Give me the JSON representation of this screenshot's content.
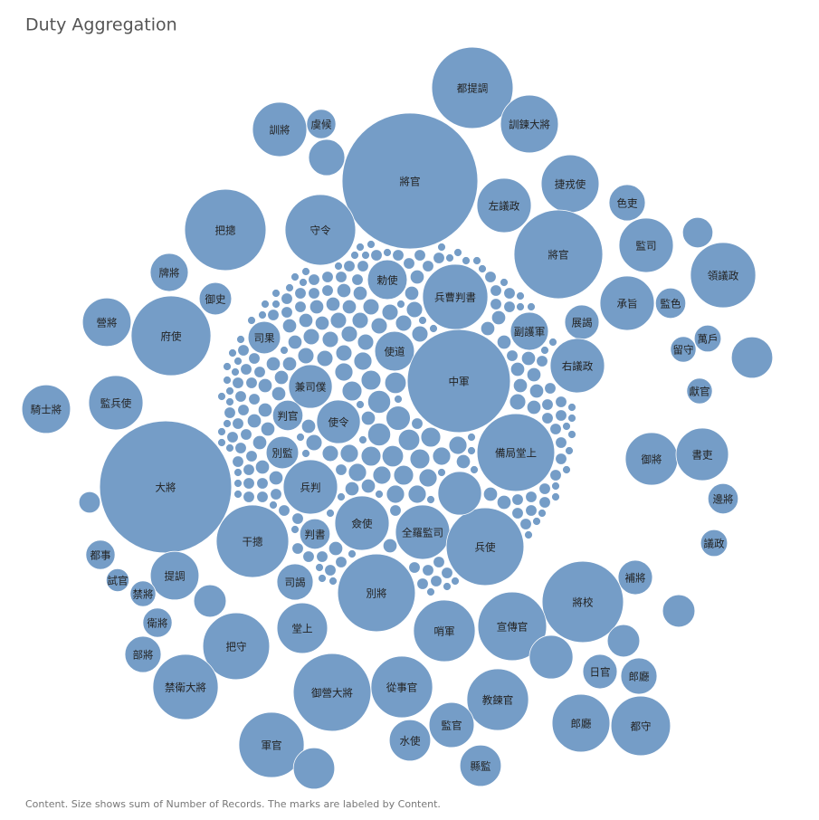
{
  "chart_data": {
    "type": "bubble",
    "title": "Duty Aggregation",
    "caption": "Content.  Size shows sum of Number of Records.  The marks are labeled by Content.",
    "color": "#759dc7",
    "categories": [
      "都提調",
      "訓鍊大將",
      "訓將",
      "虞候",
      "將官",
      "捷戎使",
      "左議政",
      "色吏",
      "把摠",
      "守令",
      "將官",
      "監司",
      "領議政",
      "勅使",
      "兵曹判書",
      "牌將",
      "御史",
      "承旨",
      "監色",
      "營將",
      "府使",
      "司果",
      "副護軍",
      "展謁",
      "萬戶",
      "留守",
      "使道",
      "中軍",
      "右議政",
      "兼司僕",
      "獻官",
      "騎士將",
      "監兵使",
      "判官",
      "使令",
      "備局堂上",
      "御將",
      "書吏",
      "別監",
      "大將",
      "兵判",
      "邊將",
      "僉使",
      "全羅監司",
      "判書",
      "干摠",
      "兵使",
      "議政",
      "都事",
      "試官",
      "提調",
      "司謁",
      "補將",
      "禁將",
      "別將",
      "將校",
      "衛將",
      "堂上",
      "哨軍",
      "宣傳官",
      "把守",
      "部將",
      "日官",
      "郎廳",
      "禁衛大將",
      "御營大將",
      "從事官",
      "教鍊官",
      "郎廳",
      "都守",
      "監官",
      "水使",
      "軍官",
      "縣監",
      null,
      null,
      null,
      null,
      null,
      null,
      null,
      null,
      null,
      null,
      null,
      null,
      null,
      null,
      null,
      null,
      null,
      null,
      null,
      null,
      null,
      null,
      null,
      null,
      null,
      null,
      null,
      null,
      null,
      null,
      null,
      null,
      null,
      null,
      null,
      null,
      null,
      null,
      null,
      null,
      null,
      null,
      null,
      null,
      null,
      null,
      null,
      null,
      null,
      null,
      null,
      null,
      null,
      null,
      null,
      null,
      null,
      null,
      null,
      null,
      null,
      null,
      null,
      null,
      null,
      null,
      null,
      null,
      null,
      null,
      null,
      null,
      null,
      null,
      null,
      null,
      null,
      null,
      null,
      null,
      null,
      null,
      null,
      null,
      null,
      null,
      null,
      null,
      null,
      null,
      null,
      null,
      null,
      null,
      null,
      null,
      null,
      null,
      null,
      null,
      null,
      null,
      null,
      null,
      null,
      null,
      null,
      null,
      null,
      null,
      null,
      null,
      null,
      null,
      null,
      null,
      null,
      null,
      null,
      null,
      null,
      null,
      null,
      null,
      null,
      null,
      null,
      null,
      null,
      null,
      null,
      null,
      null,
      null,
      null,
      null,
      null,
      null,
      null,
      null,
      null,
      null,
      null,
      null,
      null,
      null,
      null,
      null,
      null,
      null,
      null,
      null,
      null,
      null,
      null,
      null,
      null,
      null,
      null,
      null,
      null,
      null,
      null,
      null,
      null,
      null,
      null,
      null,
      null,
      null,
      null,
      null,
      null,
      null,
      null,
      null,
      null,
      null,
      null,
      null,
      null,
      null,
      null,
      null,
      null,
      null,
      null,
      null,
      null,
      null,
      null,
      null,
      null,
      null,
      null,
      null,
      null,
      null,
      null,
      null,
      null,
      null,
      null,
      null,
      null,
      null,
      null,
      null,
      null,
      null,
      null,
      null,
      null,
      null,
      null,
      null,
      null,
      null,
      null,
      null,
      null,
      null,
      null,
      null,
      null,
      null,
      null,
      null,
      null,
      null,
      null,
      null,
      null,
      null,
      null,
      null,
      null,
      null,
      null,
      null,
      null,
      null,
      null,
      null,
      null,
      null,
      null,
      null,
      null,
      null
    ],
    "values": [
      101,
      51,
      45,
      13,
      281,
      51,
      45,
      20,
      101,
      76,
      120,
      45,
      65,
      24,
      65,
      22,
      16,
      45,
      14,
      36,
      97,
      16,
      22,
      18,
      11,
      10,
      24,
      162,
      45,
      29,
      10,
      36,
      45,
      14,
      29,
      92,
      42,
      42,
      16,
      266,
      45,
      14,
      45,
      45,
      14,
      80,
      92,
      11,
      13,
      8,
      36,
      20,
      18,
      10,
      92,
      101,
      13,
      39,
      58,
      72,
      68,
      20,
      18,
      20,
      65,
      92,
      58,
      58,
      51,
      54,
      31,
      26,
      65,
      26,
      26,
      26,
      14,
      20,
      16,
      16,
      29,
      16,
      7,
      29,
      9,
      8,
      8,
      7,
      7,
      7,
      6,
      6,
      6,
      6,
      6,
      6,
      5,
      5,
      5,
      5,
      5,
      5,
      5,
      5,
      5,
      5,
      4,
      4,
      4,
      4,
      4,
      4,
      4,
      4,
      4,
      4,
      4,
      4,
      4,
      4,
      4,
      4,
      4,
      4,
      3,
      3,
      3,
      3,
      3,
      3,
      3,
      3,
      3,
      3,
      3,
      3,
      3,
      3,
      3,
      3,
      3,
      3,
      3,
      3,
      3,
      3,
      3,
      3,
      3,
      3,
      3,
      3,
      3,
      3,
      3,
      3,
      3,
      3,
      3,
      3,
      3,
      3,
      3,
      3,
      2,
      2,
      2,
      2,
      2,
      2,
      2,
      2,
      2,
      2,
      2,
      2,
      2,
      2,
      2,
      2,
      2,
      2,
      2,
      2,
      2,
      2,
      2,
      2,
      2,
      2,
      2,
      2,
      2,
      2,
      2,
      2,
      2,
      2,
      2,
      2,
      2,
      2,
      2,
      2,
      2,
      2,
      2,
      2,
      2,
      2,
      2,
      2,
      2,
      2,
      2,
      2,
      2,
      2,
      2,
      2,
      2,
      2,
      2,
      2,
      2,
      2,
      2,
      2,
      2,
      2,
      2,
      2,
      2,
      2,
      2,
      2,
      2,
      2,
      2,
      2,
      2,
      2,
      2,
      2,
      1,
      1,
      1,
      1,
      1,
      1,
      1,
      1,
      1,
      1,
      1,
      1,
      1,
      1,
      1,
      1,
      1,
      1,
      1,
      1,
      1,
      1,
      1,
      1,
      1,
      1,
      1,
      1,
      1,
      1,
      1,
      1,
      1,
      1,
      1,
      1,
      1,
      1,
      1,
      1,
      1,
      1,
      1,
      1,
      1,
      1,
      1,
      1,
      1,
      1,
      1,
      1,
      1,
      1,
      1,
      1,
      1,
      1,
      1,
      1,
      1,
      1,
      1,
      1,
      1,
      1,
      1,
      1,
      1,
      1,
      1,
      1,
      1,
      1,
      1,
      1,
      1,
      1,
      1,
      1
    ]
  }
}
